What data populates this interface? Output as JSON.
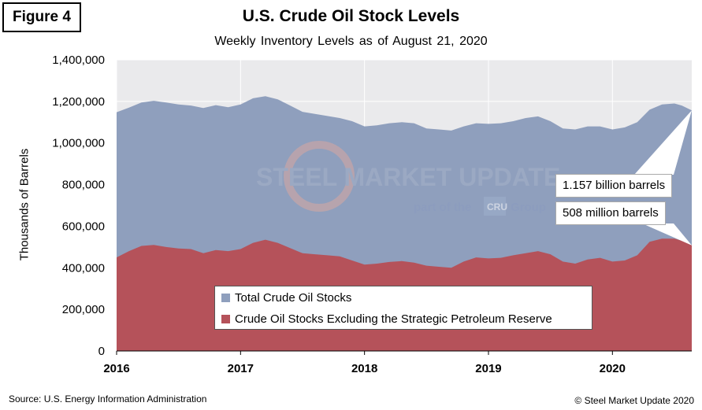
{
  "figure_label": "Figure 4",
  "source": "Source: U.S. Energy Information Administration",
  "copyright": "© Steel Market Update 2020",
  "watermark": {
    "brand": "STEEL MARKET UPDATE",
    "tagline_prefix": "part of the",
    "tagline_logo": "CRU",
    "tagline_suffix": "Group"
  },
  "colors": {
    "total": "#8f9fbd",
    "excl_spr": "#b5525a",
    "plot_bg": "#eaeaec",
    "grid": "#ffffff"
  },
  "chart_data": {
    "type": "area",
    "title": "U.S. Crude Oil Stock Levels",
    "subtitle": "Weekly Inventory Levels as of August 21, 2020",
    "ylabel": "Thousands of Barrels",
    "xlabel": "",
    "ylim": [
      0,
      1400000
    ],
    "yticks": [
      0,
      200000,
      400000,
      600000,
      800000,
      1000000,
      1200000,
      1400000
    ],
    "ytick_labels": [
      "0",
      "200,000",
      "400,000",
      "600,000",
      "800,000",
      "1,000,000",
      "1,200,000",
      "1,400,000"
    ],
    "xlim": [
      2016.0,
      2020.64
    ],
    "xticks": [
      2016,
      2017,
      2018,
      2019,
      2020
    ],
    "xtick_labels": [
      "2016",
      "2017",
      "2018",
      "2019",
      "2020"
    ],
    "grid": true,
    "legend_position": "bottom-center",
    "x": [
      2016.0,
      2016.1,
      2016.2,
      2016.3,
      2016.4,
      2016.5,
      2016.6,
      2016.7,
      2016.8,
      2016.9,
      2017.0,
      2017.1,
      2017.2,
      2017.3,
      2017.4,
      2017.5,
      2017.6,
      2017.7,
      2017.8,
      2017.9,
      2018.0,
      2018.1,
      2018.2,
      2018.3,
      2018.4,
      2018.5,
      2018.6,
      2018.7,
      2018.8,
      2018.9,
      2019.0,
      2019.1,
      2019.2,
      2019.3,
      2019.4,
      2019.5,
      2019.6,
      2019.7,
      2019.8,
      2019.9,
      2020.0,
      2020.1,
      2020.2,
      2020.3,
      2020.4,
      2020.5,
      2020.56,
      2020.64
    ],
    "series": [
      {
        "name": "Total Crude Oil Stocks",
        "values": [
          1148000,
          1170000,
          1195000,
          1203000,
          1195000,
          1185000,
          1180000,
          1168000,
          1182000,
          1172000,
          1185000,
          1215000,
          1225000,
          1210000,
          1180000,
          1150000,
          1140000,
          1130000,
          1120000,
          1105000,
          1080000,
          1085000,
          1095000,
          1100000,
          1095000,
          1070000,
          1065000,
          1060000,
          1080000,
          1095000,
          1092000,
          1095000,
          1105000,
          1120000,
          1128000,
          1105000,
          1070000,
          1065000,
          1080000,
          1080000,
          1065000,
          1075000,
          1100000,
          1160000,
          1185000,
          1190000,
          1180000,
          1157000
        ]
      },
      {
        "name": "Crude Oil Stocks Excluding the Strategic Petroleum Reserve",
        "values": [
          450000,
          480000,
          505000,
          510000,
          500000,
          493000,
          490000,
          470000,
          485000,
          480000,
          490000,
          520000,
          535000,
          520000,
          495000,
          470000,
          465000,
          460000,
          455000,
          435000,
          415000,
          420000,
          428000,
          432000,
          425000,
          410000,
          405000,
          400000,
          430000,
          450000,
          445000,
          448000,
          460000,
          470000,
          480000,
          465000,
          430000,
          420000,
          440000,
          448000,
          430000,
          435000,
          460000,
          525000,
          540000,
          540000,
          530000,
          508000
        ]
      }
    ],
    "annotations": [
      {
        "text": "1.157 billion barrels",
        "x": 2020.64,
        "y": 1157000
      },
      {
        "text": "508 million barrels",
        "x": 2020.64,
        "y": 508000
      }
    ]
  }
}
